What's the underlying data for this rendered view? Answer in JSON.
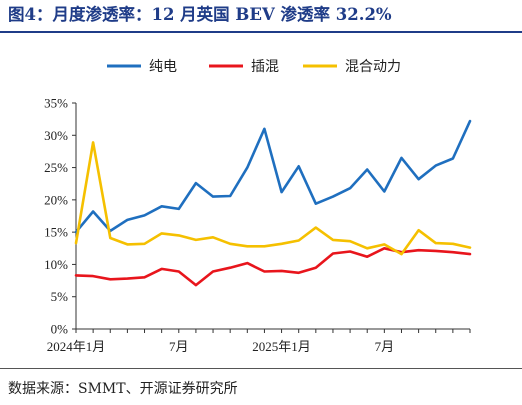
{
  "title": "图4：月度渗透率：12 月英国 BEV 渗透率 32.2%",
  "source": "数据来源：SMMT、开源证券研究所",
  "chart_data": {
    "type": "line",
    "x": [
      "2024-01",
      "2024-02",
      "2024-03",
      "2024-04",
      "2024-05",
      "2024-06",
      "2024-07",
      "2024-08",
      "2024-09",
      "2024-10",
      "2024-11",
      "2024-12",
      "2025-01",
      "2025-02",
      "2025-03",
      "2025-04",
      "2025-05",
      "2025-06",
      "2025-07",
      "2025-08",
      "2025-09",
      "2025-10",
      "2025-11",
      "2025-12"
    ],
    "x_tick_labels": [
      {
        "index": 0,
        "label": "2024年1月"
      },
      {
        "index": 6,
        "label": "7月"
      },
      {
        "index": 12,
        "label": "2025年1月"
      },
      {
        "index": 18,
        "label": "7月"
      }
    ],
    "y_ticks": [
      "0%",
      "5%",
      "10%",
      "15%",
      "20%",
      "25%",
      "30%",
      "35%"
    ],
    "ylim": [
      0,
      35
    ],
    "y_unit": "%",
    "grid": false,
    "legend_position": "top",
    "series": [
      {
        "name": "纯电",
        "color": "#1f6fbf",
        "values": [
          15.0,
          18.2,
          15.2,
          16.9,
          17.6,
          19.0,
          18.6,
          22.6,
          20.5,
          20.6,
          25.0,
          31.0,
          21.2,
          25.2,
          19.4,
          20.5,
          21.8,
          24.7,
          21.3,
          26.5,
          23.2,
          25.3,
          26.4,
          32.2
        ]
      },
      {
        "name": "插混",
        "color": "#e8151c",
        "values": [
          8.3,
          8.2,
          7.7,
          7.8,
          8.0,
          9.3,
          8.9,
          6.8,
          8.9,
          9.5,
          10.2,
          8.9,
          9.0,
          8.7,
          9.5,
          11.7,
          12.0,
          11.2,
          12.5,
          11.9,
          12.2,
          12.1,
          11.9,
          11.6
        ]
      },
      {
        "name": "混合动力",
        "color": "#f5c000",
        "values": [
          13.3,
          28.9,
          14.1,
          13.1,
          13.2,
          14.8,
          14.5,
          13.8,
          14.2,
          13.2,
          12.8,
          12.8,
          13.2,
          13.7,
          15.7,
          13.8,
          13.6,
          12.5,
          13.1,
          11.6,
          15.3,
          13.3,
          13.2,
          12.6
        ]
      }
    ]
  }
}
